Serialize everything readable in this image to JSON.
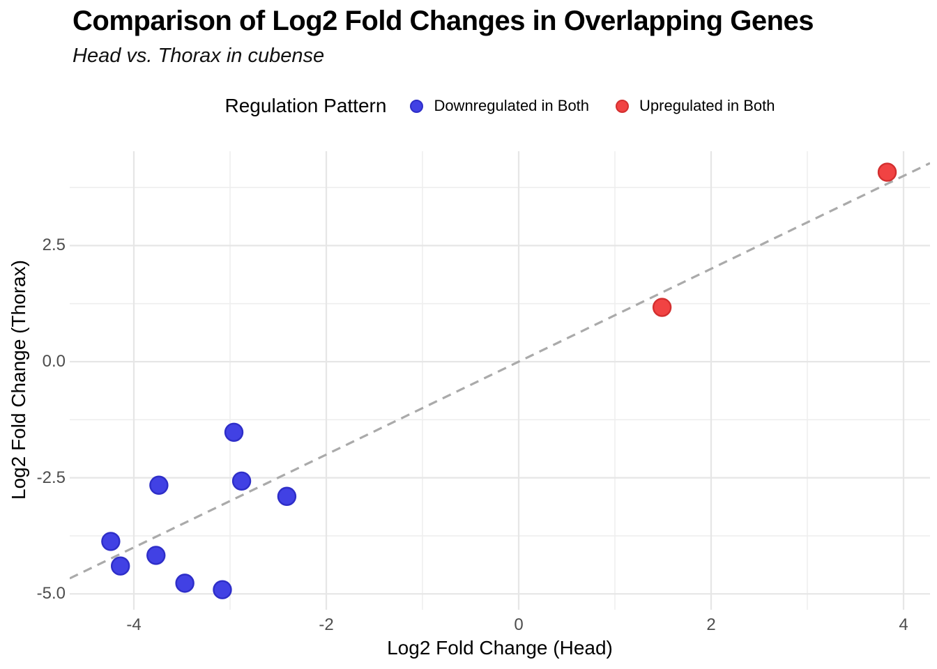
{
  "header": {
    "title": "Comparison of Log2 Fold Changes in Overlapping Genes",
    "subtitle": "Head vs. Thorax in cubense"
  },
  "legend": {
    "title": "Regulation Pattern",
    "items": [
      {
        "label": "Downregulated in Both",
        "color": "#4141e4"
      },
      {
        "label": "Upregulated in Both",
        "color": "#f14343"
      }
    ]
  },
  "axes": {
    "x": {
      "title": "Log2 Fold Change (Head)"
    },
    "y": {
      "title": "Log2 Fold Change (Thorax)"
    }
  },
  "colors": {
    "downregulated_fill": "#4141e4",
    "downregulated_stroke": "#2e2ec8",
    "upregulated_fill": "#f14343",
    "upregulated_stroke": "#d32f2f",
    "identity_line": "#aaaaaa",
    "grid_major": "#e6e6e6",
    "grid_minor": "#eeeeee",
    "tick_label": "#4d4d4d"
  },
  "chart_data": {
    "type": "scatter",
    "title": "Comparison of Log2 Fold Changes in Overlapping Genes",
    "subtitle": "Head vs. Thorax in cubense",
    "xlabel": "Log2 Fold Change (Head)",
    "ylabel": "Log2 Fold Change (Thorax)",
    "xlim": [
      -4.67,
      4.28
    ],
    "ylim": [
      -5.31,
      4.53
    ],
    "x_major_ticks": [
      -4,
      -2,
      0,
      2,
      4
    ],
    "x_tick_labels": [
      "-4",
      "-2",
      "0",
      "2",
      "4"
    ],
    "x_minor_ticks": [
      -3,
      -1,
      1,
      3
    ],
    "y_major_ticks": [
      2.5,
      0.0,
      -2.5,
      -5.0
    ],
    "y_tick_labels": [
      "2.5",
      "0.0",
      "-2.5",
      "-5.0"
    ],
    "y_minor_ticks": [
      3.75,
      1.25,
      -1.25,
      -3.75
    ],
    "grid": true,
    "legend_position": "top",
    "reference_line": {
      "type": "identity y = x",
      "style": "dashed",
      "color": "#aaaaaa"
    },
    "series": [
      {
        "name": "Downregulated in Both",
        "fill": "#4141e4",
        "stroke": "#2e2ec8",
        "points": [
          {
            "x": -2.96,
            "y": -1.52
          },
          {
            "x": -3.74,
            "y": -2.66
          },
          {
            "x": -2.88,
            "y": -2.57
          },
          {
            "x": -2.41,
            "y": -2.9
          },
          {
            "x": -4.24,
            "y": -3.87
          },
          {
            "x": -3.77,
            "y": -4.17
          },
          {
            "x": -4.14,
            "y": -4.4
          },
          {
            "x": -3.47,
            "y": -4.77
          },
          {
            "x": -3.08,
            "y": -4.91
          }
        ]
      },
      {
        "name": "Upregulated in Both",
        "fill": "#f14343",
        "stroke": "#d32f2f",
        "points": [
          {
            "x": 1.49,
            "y": 1.17
          },
          {
            "x": 3.83,
            "y": 4.08
          }
        ]
      }
    ]
  }
}
